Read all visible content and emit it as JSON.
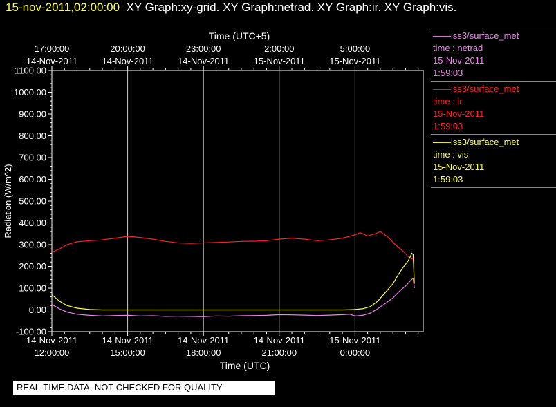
{
  "header": {
    "timestamp": "15-nov-2011,02:00:00",
    "graphs": "XY Graph:xy-grid.  XY Graph:netrad.  XY Graph:ir.  XY Graph:vis."
  },
  "legend": [
    {
      "station": "——iss3/surface_met",
      "label": "time : netrad",
      "date": "15-Nov-2011",
      "time": "1:59:03",
      "color": "#ee82ee"
    },
    {
      "station": "——iss3/surface_met",
      "label": "time : ir",
      "date": "15-Nov-2011",
      "time": "1:59:03",
      "color": "#ff2020"
    },
    {
      "station": "——iss3/surface_met",
      "label": "time : vis",
      "date": "15-Nov-2011",
      "time": "1:59:03",
      "color": "#ffff33"
    }
  ],
  "disclaimer": "REAL-TIME DATA, NOT CHECKED FOR QUALITY",
  "chart_data": {
    "type": "line",
    "ylabel": "Radiation (W/m^2)",
    "xlabel_bottom": "Time (UTC)",
    "xlabel_top": "Time (UTC+5)",
    "ylim": [
      -100,
      1100
    ],
    "xlim_hours": [
      0,
      14.7
    ],
    "yticks": [
      "-100.00",
      "0.00",
      "100.00",
      "200.00",
      "300.00",
      "400.00",
      "500.00",
      "600.00",
      "700.00",
      "800.00",
      "900.00",
      "1000.00",
      "1100.00"
    ],
    "bottom_ticks": [
      {
        "h": 0,
        "date": "14-Nov-2011",
        "time": "12:00:00"
      },
      {
        "h": 3,
        "date": "14-Nov-2011",
        "time": "15:00:00"
      },
      {
        "h": 6,
        "date": "14-Nov-2011",
        "time": "18:00:00"
      },
      {
        "h": 9,
        "date": "14-Nov-2011",
        "time": "21:00:00"
      },
      {
        "h": 12,
        "date": "15-Nov-2011",
        "time": "0:00:00"
      }
    ],
    "top_ticks": [
      {
        "h": 0,
        "time": "17:00:00",
        "date": "14-Nov-2011"
      },
      {
        "h": 3,
        "time": "20:00:00",
        "date": "14-Nov-2011"
      },
      {
        "h": 6,
        "time": "23:00:00",
        "date": "14-Nov-2011"
      },
      {
        "h": 9,
        "time": "2:00:00",
        "date": "15-Nov-2011"
      },
      {
        "h": 12,
        "time": "5:00:00",
        "date": "15-Nov-2011"
      }
    ],
    "grid": true,
    "series": [
      {
        "name": "netrad",
        "color": "#ee82ee",
        "points": [
          [
            0,
            25
          ],
          [
            0.3,
            5
          ],
          [
            0.6,
            -10
          ],
          [
            1.0,
            -20
          ],
          [
            1.5,
            -25
          ],
          [
            2.0,
            -28
          ],
          [
            2.5,
            -26
          ],
          [
            3.0,
            -25
          ],
          [
            3.5,
            -28
          ],
          [
            4.0,
            -27
          ],
          [
            4.5,
            -30
          ],
          [
            5.0,
            -29
          ],
          [
            5.5,
            -30
          ],
          [
            6.0,
            -31
          ],
          [
            6.5,
            -28
          ],
          [
            7.0,
            -29
          ],
          [
            7.5,
            -27
          ],
          [
            8.0,
            -26
          ],
          [
            8.5,
            -25
          ],
          [
            9.0,
            -22
          ],
          [
            9.5,
            -23
          ],
          [
            10.0,
            -24
          ],
          [
            10.5,
            -26
          ],
          [
            11.0,
            -24
          ],
          [
            11.5,
            -22
          ],
          [
            11.8,
            -20
          ],
          [
            12.0,
            -28
          ],
          [
            12.3,
            -25
          ],
          [
            12.6,
            -15
          ],
          [
            12.9,
            5
          ],
          [
            13.2,
            30
          ],
          [
            13.5,
            55
          ],
          [
            13.8,
            90
          ],
          [
            14.0,
            110
          ],
          [
            14.2,
            135
          ],
          [
            14.3,
            145
          ],
          [
            14.35,
            100
          ]
        ]
      },
      {
        "name": "ir",
        "color": "#ff2020",
        "points": [
          [
            0,
            265
          ],
          [
            0.3,
            280
          ],
          [
            0.6,
            300
          ],
          [
            1.0,
            313
          ],
          [
            1.5,
            318
          ],
          [
            2.0,
            322
          ],
          [
            2.5,
            330
          ],
          [
            3.0,
            338
          ],
          [
            3.5,
            333
          ],
          [
            4.0,
            325
          ],
          [
            4.5,
            315
          ],
          [
            5.0,
            308
          ],
          [
            5.5,
            306
          ],
          [
            6.0,
            308
          ],
          [
            6.5,
            310
          ],
          [
            7.0,
            312
          ],
          [
            7.5,
            315
          ],
          [
            8.0,
            316
          ],
          [
            8.5,
            318
          ],
          [
            9.0,
            325
          ],
          [
            9.5,
            330
          ],
          [
            10.0,
            325
          ],
          [
            10.5,
            318
          ],
          [
            11.0,
            322
          ],
          [
            11.5,
            330
          ],
          [
            12.0,
            345
          ],
          [
            12.2,
            355
          ],
          [
            12.5,
            340
          ],
          [
            12.8,
            350
          ],
          [
            13.0,
            360
          ],
          [
            13.3,
            335
          ],
          [
            13.6,
            300
          ],
          [
            13.9,
            270
          ],
          [
            14.1,
            245
          ],
          [
            14.3,
            232
          ],
          [
            14.35,
            225
          ]
        ]
      },
      {
        "name": "vis",
        "color": "#ffff33",
        "points": [
          [
            0,
            70
          ],
          [
            0.3,
            40
          ],
          [
            0.6,
            20
          ],
          [
            1.0,
            8
          ],
          [
            1.5,
            2
          ],
          [
            2.0,
            0
          ],
          [
            3.0,
            0
          ],
          [
            4.0,
            0
          ],
          [
            5.0,
            0
          ],
          [
            6.0,
            0
          ],
          [
            7.0,
            0
          ],
          [
            8.0,
            0
          ],
          [
            9.0,
            0
          ],
          [
            10.0,
            0
          ],
          [
            11.0,
            0
          ],
          [
            11.5,
            0
          ],
          [
            12.0,
            2
          ],
          [
            12.3,
            5
          ],
          [
            12.6,
            15
          ],
          [
            12.9,
            40
          ],
          [
            13.2,
            80
          ],
          [
            13.5,
            120
          ],
          [
            13.7,
            160
          ],
          [
            13.9,
            195
          ],
          [
            14.1,
            225
          ],
          [
            14.25,
            260
          ],
          [
            14.3,
            255
          ],
          [
            14.35,
            120
          ]
        ]
      }
    ]
  }
}
